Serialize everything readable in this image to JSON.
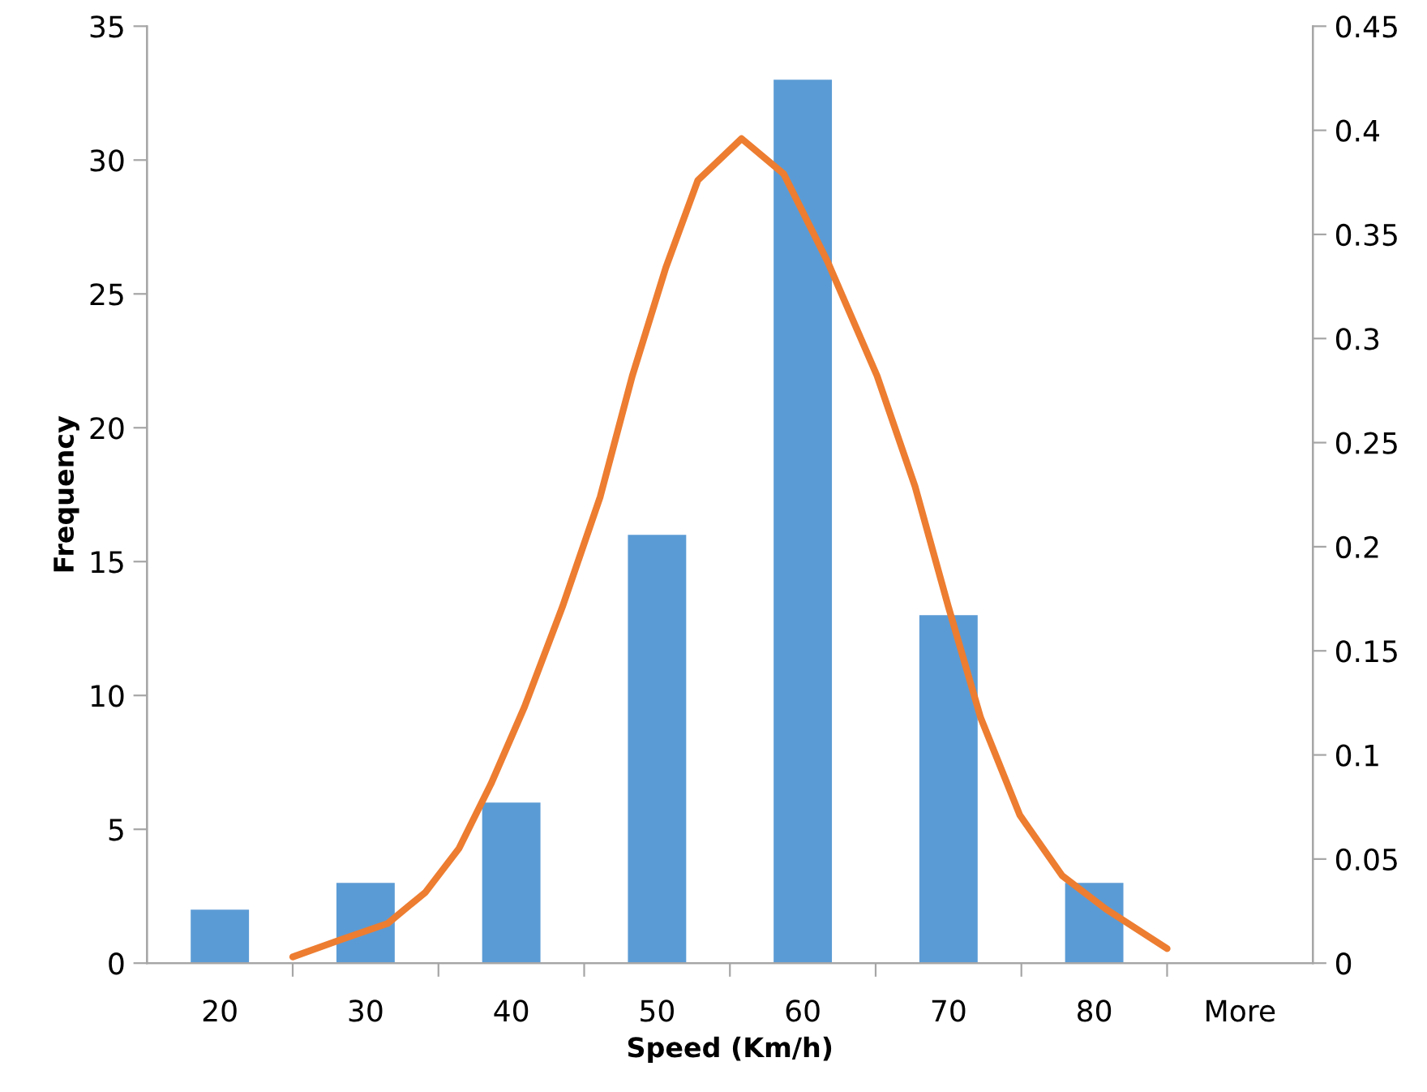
{
  "chart_data": {
    "type": "bar",
    "xlabel": "Speed (Km/h)",
    "ylabel": "Frequency",
    "xlim": [
      15,
      95
    ],
    "xticks": [
      {
        "value": 20,
        "label": "20"
      },
      {
        "value": 30,
        "label": "30"
      },
      {
        "value": 40,
        "label": "40"
      },
      {
        "value": 50,
        "label": "50"
      },
      {
        "value": 60,
        "label": "60"
      },
      {
        "value": 70,
        "label": "70"
      },
      {
        "value": 80,
        "label": "80"
      },
      {
        "value": 90,
        "label": "More"
      },
      {
        "value": 25,
        "label": null
      },
      {
        "value": 35,
        "label": null
      },
      {
        "value": 45,
        "label": null
      },
      {
        "value": 55,
        "label": null
      },
      {
        "value": 65,
        "label": null
      },
      {
        "value": 75,
        "label": null
      },
      {
        "value": 85,
        "label": null
      }
    ],
    "ylim": [
      0,
      35
    ],
    "yticks": [
      0,
      5,
      10,
      15,
      20,
      25,
      30,
      35
    ],
    "y2lim": [
      0,
      0.45
    ],
    "y2ticks": [
      0,
      0.05,
      0.1,
      0.15,
      0.2,
      0.25,
      0.3,
      0.35,
      0.4,
      0.45
    ],
    "grid": false,
    "legend": false,
    "series": [
      {
        "color": "#5b9bd5",
        "x": [
          20,
          30,
          40,
          50,
          60,
          70,
          80,
          90
        ],
        "values": [
          2,
          3,
          6,
          16,
          33,
          13,
          3,
          0
        ]
      },
      {
        "type": "line",
        "axis": "y2",
        "color": "#ed7d31",
        "line_style": "solid",
        "marker": "none",
        "x": [
          25,
          28.2,
          31.5,
          34.1,
          36.4,
          38.6,
          40.9,
          43.5,
          46.1,
          48.3,
          50.6,
          52.8,
          55.8,
          58.7,
          61.7,
          65.1,
          67.7,
          70.0,
          72.2,
          74.9,
          77.8,
          80.8,
          85
        ],
        "values": [
          0.003,
          0.011,
          0.019,
          0.034,
          0.055,
          0.086,
          0.123,
          0.171,
          0.224,
          0.282,
          0.334,
          0.376,
          0.396,
          0.379,
          0.337,
          0.282,
          0.229,
          0.171,
          0.118,
          0.071,
          0.042,
          0.026,
          0.007
        ]
      }
    ]
  }
}
